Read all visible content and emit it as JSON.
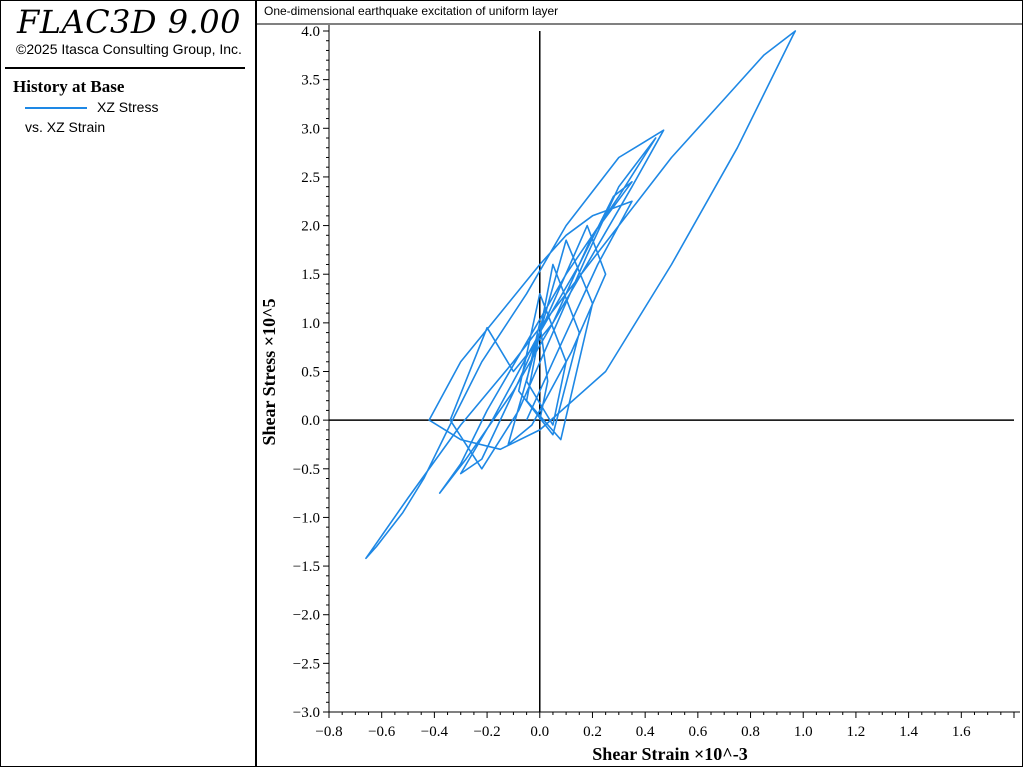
{
  "app": {
    "title": "FLAC3D 9.00",
    "copyright": "©2025 Itasca Consulting Group, Inc."
  },
  "legend": {
    "title": "History at Base",
    "line1": "XZ Stress",
    "line2": "vs. XZ Strain",
    "color": "#1e88e5"
  },
  "chart_data": {
    "type": "line",
    "title": "One-dimensional earthquake excitation of uniform layer",
    "xlabel": "Shear Strain ×10^-3",
    "ylabel": "Shear Stress ×10^5",
    "xlim": [
      -0.8,
      1.8
    ],
    "ylim": [
      -3.0,
      4.0
    ],
    "xticks": [
      "−0.8",
      "−0.6",
      "−0.4",
      "−0.2",
      "0.0",
      "0.2",
      "0.4",
      "0.6",
      "0.8",
      "1.0",
      "1.2",
      "1.4",
      "1.6"
    ],
    "yticks": [
      "−3.0",
      "−2.5",
      "−2.0",
      "−1.5",
      "−1.0",
      "−0.5",
      "0.0",
      "0.5",
      "1.0",
      "1.5",
      "2.0",
      "2.5",
      "3.0",
      "3.5",
      "4.0"
    ],
    "series": [
      {
        "color": "#1e88e5",
        "x": [
          0.0,
          0.03,
          0.0,
          -0.05,
          0.05,
          0.1,
          0.0,
          -0.08,
          0.05,
          0.15,
          0.05,
          -0.05,
          0.08,
          0.2,
          0.1,
          -0.02,
          -0.12,
          -0.03,
          0.12,
          0.25,
          0.18,
          0.05,
          -0.08,
          -0.22,
          -0.3,
          -0.18,
          0.0,
          0.15,
          0.28,
          0.35,
          0.2,
          0.05,
          -0.1,
          -0.2,
          -0.34,
          -0.22,
          -0.08,
          0.05,
          0.18,
          0.3,
          0.44,
          0.3,
          0.1,
          -0.05,
          -0.2,
          -0.3,
          -0.38,
          -0.28,
          -0.1,
          0.05,
          0.2,
          0.35,
          0.47,
          0.3,
          0.1,
          -0.05,
          -0.22,
          -0.35,
          -0.44,
          -0.52,
          -0.62,
          -0.66,
          -0.5,
          -0.3,
          -0.1,
          0.1,
          0.3,
          0.5,
          0.7,
          0.85,
          0.97,
          0.96,
          0.75,
          0.5,
          0.25,
          0.0,
          -0.15,
          -0.3,
          -0.42,
          -0.3,
          -0.15,
          0.0,
          0.1,
          0.2,
          0.3,
          0.35,
          0.22,
          0.05,
          -0.05
        ],
        "y": [
          0.0,
          0.4,
          1.0,
          0.4,
          -0.05,
          0.6,
          1.3,
          0.3,
          -0.15,
          0.9,
          1.6,
          0.2,
          -0.2,
          1.2,
          1.85,
          0.7,
          -0.25,
          -0.05,
          0.7,
          1.5,
          2.0,
          1.2,
          0.4,
          -0.4,
          -0.55,
          0.0,
          0.9,
          1.6,
          2.3,
          2.45,
          1.9,
          1.0,
          0.5,
          0.95,
          0.0,
          -0.5,
          0.1,
          0.9,
          1.7,
          2.4,
          2.9,
          2.3,
          1.5,
          0.8,
          0.1,
          -0.45,
          -0.75,
          -0.4,
          0.3,
          1.0,
          1.7,
          2.4,
          2.98,
          2.7,
          2.0,
          1.3,
          0.6,
          -0.1,
          -0.6,
          -0.95,
          -1.3,
          -1.42,
          -0.8,
          -0.05,
          0.6,
          1.3,
          2.0,
          2.7,
          3.3,
          3.75,
          4.0,
          3.95,
          2.8,
          1.6,
          0.5,
          -0.1,
          -0.3,
          -0.2,
          0.0,
          0.6,
          1.1,
          1.6,
          1.9,
          2.1,
          2.2,
          2.25,
          1.6,
          0.6,
          0.0
        ]
      }
    ]
  }
}
